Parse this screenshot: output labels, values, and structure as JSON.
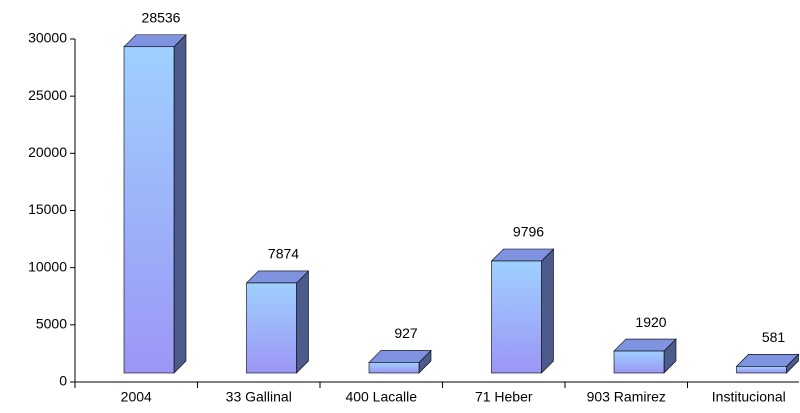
{
  "chart_data": {
    "type": "bar",
    "categories": [
      "2004",
      "33 Gallinal",
      "400 Lacalle",
      "71 Heber",
      "903 Ramirez",
      "Institucional"
    ],
    "values": [
      28536,
      7874,
      927,
      9796,
      1920,
      581
    ],
    "color": "#99b3ff",
    "ylim": [
      0,
      30000
    ],
    "yticks": [
      0,
      5000,
      10000,
      15000,
      20000,
      25000,
      30000
    ]
  }
}
